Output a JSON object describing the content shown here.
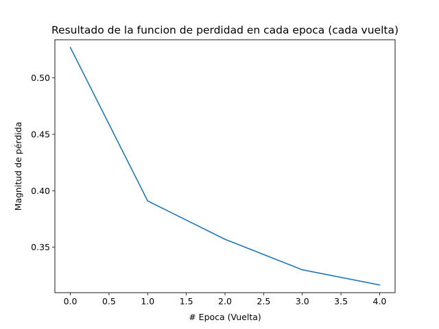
{
  "chart_data": {
    "type": "line",
    "title": "Resultado de la funcion de perdidad en cada epoca (cada vuelta)",
    "xlabel": "# Epoca (Vuelta)",
    "ylabel": "Magnitud de pérdida",
    "x": [
      0,
      1,
      2,
      3,
      4
    ],
    "series": [
      {
        "values": [
          0.527,
          0.391,
          0.357,
          0.33,
          0.3165
        ]
      }
    ],
    "xlim": [
      -0.2,
      4.2
    ],
    "ylim": [
      0.3097,
      0.5338
    ],
    "xticks": [
      "0.0",
      "0.5",
      "1.0",
      "1.5",
      "2.0",
      "2.5",
      "3.0",
      "3.5",
      "4.0"
    ],
    "yticks": [
      "0.35",
      "0.40",
      "0.45",
      "0.50"
    ],
    "grid": false,
    "line_color": "#1f77b4"
  }
}
